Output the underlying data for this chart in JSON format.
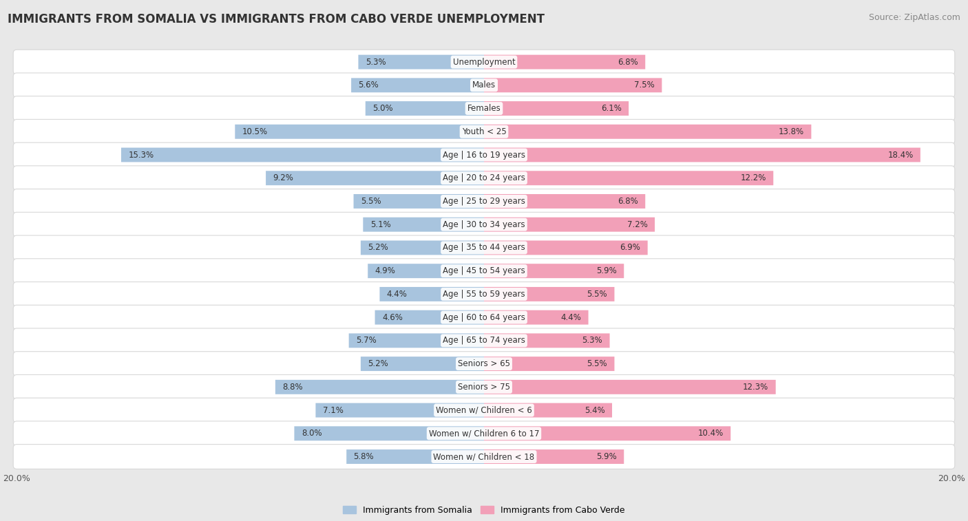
{
  "title": "IMMIGRANTS FROM SOMALIA VS IMMIGRANTS FROM CABO VERDE UNEMPLOYMENT",
  "source": "Source: ZipAtlas.com",
  "categories": [
    "Unemployment",
    "Males",
    "Females",
    "Youth < 25",
    "Age | 16 to 19 years",
    "Age | 20 to 24 years",
    "Age | 25 to 29 years",
    "Age | 30 to 34 years",
    "Age | 35 to 44 years",
    "Age | 45 to 54 years",
    "Age | 55 to 59 years",
    "Age | 60 to 64 years",
    "Age | 65 to 74 years",
    "Seniors > 65",
    "Seniors > 75",
    "Women w/ Children < 6",
    "Women w/ Children 6 to 17",
    "Women w/ Children < 18"
  ],
  "somalia_values": [
    5.3,
    5.6,
    5.0,
    10.5,
    15.3,
    9.2,
    5.5,
    5.1,
    5.2,
    4.9,
    4.4,
    4.6,
    5.7,
    5.2,
    8.8,
    7.1,
    8.0,
    5.8
  ],
  "caboverde_values": [
    6.8,
    7.5,
    6.1,
    13.8,
    18.4,
    12.2,
    6.8,
    7.2,
    6.9,
    5.9,
    5.5,
    4.4,
    5.3,
    5.5,
    12.3,
    5.4,
    10.4,
    5.9
  ],
  "somalia_color": "#a8c4de",
  "caboverde_color": "#f2a0b8",
  "row_bg_color": "#efefef",
  "row_border_color": "#e0e0e0",
  "background_color": "#e8e8e8",
  "max_value": 20.0,
  "legend_somalia": "Immigrants from Somalia",
  "legend_caboverde": "Immigrants from Cabo Verde",
  "title_fontsize": 12,
  "source_fontsize": 9,
  "label_fontsize": 8.5,
  "value_fontsize": 8.5
}
